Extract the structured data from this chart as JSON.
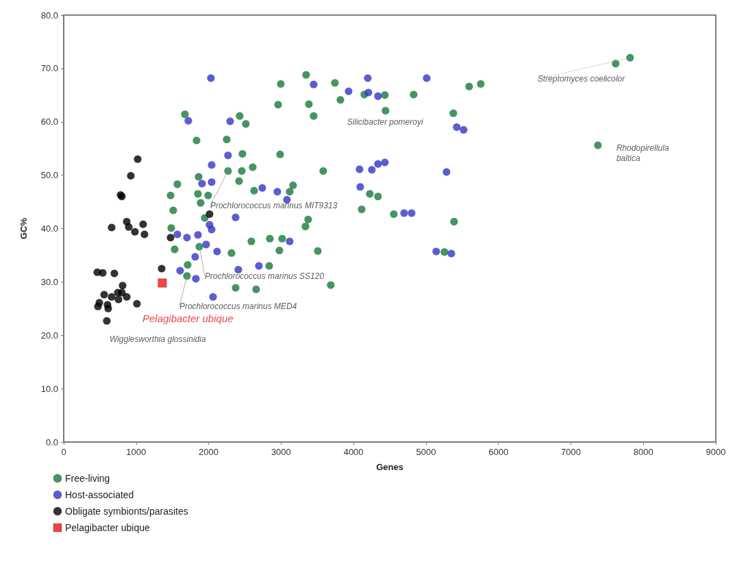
{
  "chart_data": {
    "type": "scatter",
    "xlabel": "Genes",
    "ylabel": "GC%",
    "xlim": [
      0,
      9000
    ],
    "xticks": [
      0,
      1000,
      2000,
      3000,
      4000,
      5000,
      6000,
      7000,
      8000,
      9000
    ],
    "ylim": [
      0,
      80
    ],
    "yticks": [
      {
        "value": 0,
        "label": "0.0"
      },
      {
        "value": 10,
        "label": "10.0"
      },
      {
        "value": 20,
        "label": "20.0"
      },
      {
        "value": 30,
        "label": "30.0"
      },
      {
        "value": 40,
        "label": "40.0"
      },
      {
        "value": 50,
        "label": "50.0"
      },
      {
        "value": 60,
        "label": "60.0"
      },
      {
        "value": 70,
        "label": "70.0"
      },
      {
        "value": 80,
        "label": "80.0"
      }
    ],
    "grid": false,
    "legend": "bottom left",
    "marker": "circle",
    "series": [
      {
        "name": "Free-living",
        "color": "#167a3c",
        "x": [
          2996,
          2959,
          3346,
          3743,
          3819,
          3384,
          3450,
          1673,
          2429,
          2514,
          1834,
          2250,
          2467,
          2987,
          2268,
          2458,
          2609,
          1862,
          1569,
          2420,
          3166,
          3582,
          4149,
          4433,
          4830,
          4442,
          5596,
          5756,
          5378,
          4225,
          4338,
          4112,
          4556,
          5388,
          3119,
          3374,
          3337,
          3015,
          2977,
          3507,
          5255,
          3686,
          2628,
          1994,
          1853,
          1475,
          1890,
          1512,
          1947,
          1484,
          1872,
          1531,
          1711,
          1701,
          2373,
          2656,
          2590,
          2845,
          2316,
          2836,
          7618,
          7817,
          7373
        ],
        "values": [
          67.1,
          63.2,
          68.8,
          67.3,
          64.1,
          63.3,
          61.1,
          61.4,
          61.1,
          59.6,
          56.5,
          56.7,
          54.0,
          53.9,
          50.8,
          50.8,
          51.5,
          49.7,
          48.3,
          48.9,
          48.1,
          50.8,
          65.1,
          65.0,
          65.1,
          62.1,
          66.6,
          67.1,
          61.6,
          46.5,
          46.0,
          43.6,
          42.7,
          41.3,
          46.9,
          41.7,
          40.4,
          38.1,
          35.9,
          35.8,
          35.6,
          29.4,
          47.1,
          46.2,
          46.5,
          46.2,
          44.8,
          43.4,
          42.0,
          40.1,
          36.6,
          36.1,
          33.2,
          31.1,
          28.9,
          28.6,
          37.6,
          38.1,
          35.4,
          33.0,
          70.9,
          72.0,
          55.6
        ]
      },
      {
        "name": "Host-associated",
        "color": "#3535c8",
        "x": [
          2032,
          1720,
          2297,
          2268,
          2042,
          1909,
          2042,
          3450,
          3932,
          4197,
          5010,
          4206,
          4338,
          5425,
          5520,
          4083,
          4253,
          4338,
          4433,
          5284,
          4093,
          2949,
          3081,
          2741,
          4698,
          4802,
          3119,
          5142,
          5350,
          2373,
          2013,
          2042,
          1569,
          1701,
          1853,
          1966,
          2117,
          1815,
          1607,
          1824,
          2410,
          2694,
          2061
        ],
        "values": [
          68.2,
          60.2,
          60.1,
          53.7,
          51.9,
          48.4,
          48.7,
          67.0,
          65.7,
          68.2,
          68.2,
          65.5,
          64.8,
          59.0,
          58.5,
          51.1,
          51.0,
          52.1,
          52.4,
          50.6,
          47.8,
          46.9,
          45.4,
          47.6,
          42.9,
          42.9,
          37.6,
          35.7,
          35.3,
          42.1,
          40.7,
          39.8,
          38.9,
          38.3,
          38.8,
          37.0,
          35.7,
          34.7,
          32.1,
          30.6,
          32.3,
          33.0,
          27.2
        ]
      },
      {
        "name": "Obligate symbionts/parasites",
        "color": "#000000",
        "x": [
          463,
          539,
          699,
          1352,
          813,
          558,
          662,
          747,
          803,
          870,
          756,
          492,
          473,
          605,
          614,
          1011,
          595,
          1021,
          926,
          785,
          803,
          662,
          870,
          898,
          1096,
          1115,
          983,
          1475,
          2013
        ],
        "values": [
          31.8,
          31.7,
          31.6,
          32.5,
          29.3,
          27.6,
          27.2,
          28.0,
          28.0,
          27.2,
          26.7,
          26.1,
          25.4,
          25.7,
          25.0,
          25.9,
          22.7,
          53.0,
          49.9,
          46.3,
          46.0,
          40.2,
          41.3,
          40.3,
          40.8,
          38.9,
          39.4,
          38.3,
          42.7
        ]
      },
      {
        "name": "Pelagibacter ubique",
        "color": "#e8141c",
        "marker": "square",
        "x": [
          1361
        ],
        "values": [
          29.8
        ]
      }
    ],
    "annotations": [
      {
        "text": "Streptomyces coelicolor",
        "x": 7817,
        "y": 72.0
      },
      {
        "text": "Rhodopirellula baltica",
        "x": 7373,
        "y": 55.6
      },
      {
        "text": "Silicibacter pomeroyi",
        "x": 4442,
        "y": 62.1
      },
      {
        "text": "Prochlorococcus marinus MIT9313",
        "x": 2268,
        "y": 50.8
      },
      {
        "text": "Prochlorococcus marinus SS120",
        "x": 1872,
        "y": 36.6
      },
      {
        "text": "Prochlorococcus marinus MED4",
        "x": 1701,
        "y": 31.1
      },
      {
        "text": "Pelagibacter ubique",
        "x": 1361,
        "y": 29.8
      },
      {
        "text": "Wigglesworthia glossinidia",
        "x": 595,
        "y": 22.7
      }
    ]
  }
}
